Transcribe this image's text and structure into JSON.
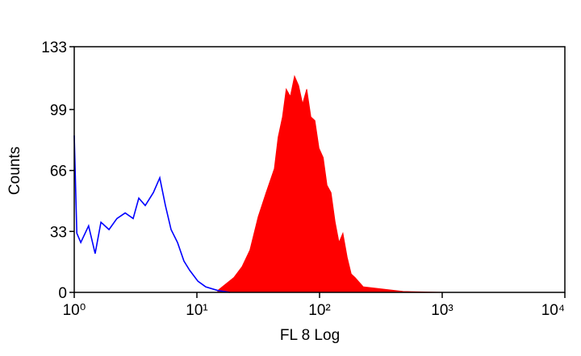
{
  "chart_data": {
    "type": "histogram-overlay",
    "x_label": "FL 8 Log",
    "y_label": "Counts",
    "xscale": "log",
    "xlim": [
      1,
      10000
    ],
    "xticks": [
      {
        "value": 1,
        "label": "10⁰"
      },
      {
        "value": 10,
        "label": "10¹"
      },
      {
        "value": 100,
        "label": "10²"
      },
      {
        "value": 1000,
        "label": "10³"
      },
      {
        "value": 10000,
        "label": "10⁴"
      }
    ],
    "ylim": [
      0,
      133
    ],
    "yticks": [
      0,
      33,
      66,
      99,
      133
    ],
    "series": [
      {
        "color": "#ff0000",
        "style": "area",
        "x": [
          14.8,
          20.0,
          23.4,
          27.1,
          31.6,
          36.7,
          42.8,
          46.0,
          49.9,
          53.5,
          57.8,
          62.5,
          67.4,
          72.8,
          78.6,
          84.9,
          91.6,
          98.9,
          107,
          115,
          124,
          134,
          144,
          155,
          168,
          181,
          195,
          227,
          304,
          480,
          1030
        ],
        "values": [
          1,
          8,
          14,
          23,
          41,
          54,
          67,
          84,
          95,
          110,
          106,
          117,
          112,
          102,
          110,
          95,
          93,
          78,
          73,
          58,
          54,
          38,
          27,
          32,
          19,
          10,
          8,
          3,
          2,
          0.5,
          0
        ]
      },
      {
        "color": "#0000ff",
        "style": "line",
        "x": [
          1,
          1.05,
          1.13,
          1.31,
          1.48,
          1.65,
          1.92,
          2.23,
          2.6,
          3.02,
          3.36,
          3.79,
          4.41,
          4.98,
          5.54,
          6.16,
          6.95,
          7.83,
          8.72,
          10.2,
          11.8,
          14.8,
          18.6
        ],
        "values": [
          85,
          32,
          27,
          36,
          21,
          38,
          34,
          40,
          43,
          40,
          51,
          47,
          54,
          62,
          47,
          34,
          27,
          17,
          12,
          6,
          3,
          1,
          0
        ]
      }
    ]
  }
}
